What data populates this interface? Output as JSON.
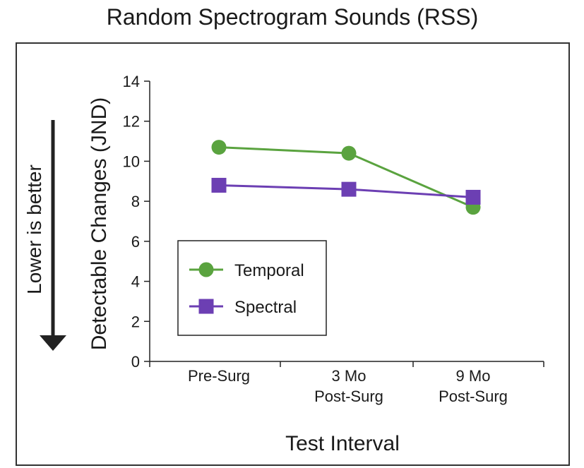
{
  "chart_data": {
    "type": "line",
    "title": "Random Spectrogram Sounds (RSS)",
    "xlabel": "Test Interval",
    "ylabel": "Detectable  Changes (JND)",
    "side_note": "Lower is better",
    "categories": [
      [
        "Pre-Surg"
      ],
      [
        "3 Mo",
        "Post-Surg"
      ],
      [
        "9 Mo",
        "Post-Surg"
      ]
    ],
    "ylim": [
      0,
      14
    ],
    "yticks": [
      0,
      2,
      4,
      6,
      8,
      10,
      12,
      14
    ],
    "grid": false,
    "legend_position": "center-left",
    "series": [
      {
        "name": "Temporal",
        "values": [
          10.7,
          10.4,
          7.7
        ],
        "color": "#5aa33f",
        "marker": "circle"
      },
      {
        "name": "Spectral",
        "values": [
          8.8,
          8.6,
          8.2
        ],
        "color": "#6c3fb3",
        "marker": "square"
      }
    ]
  }
}
